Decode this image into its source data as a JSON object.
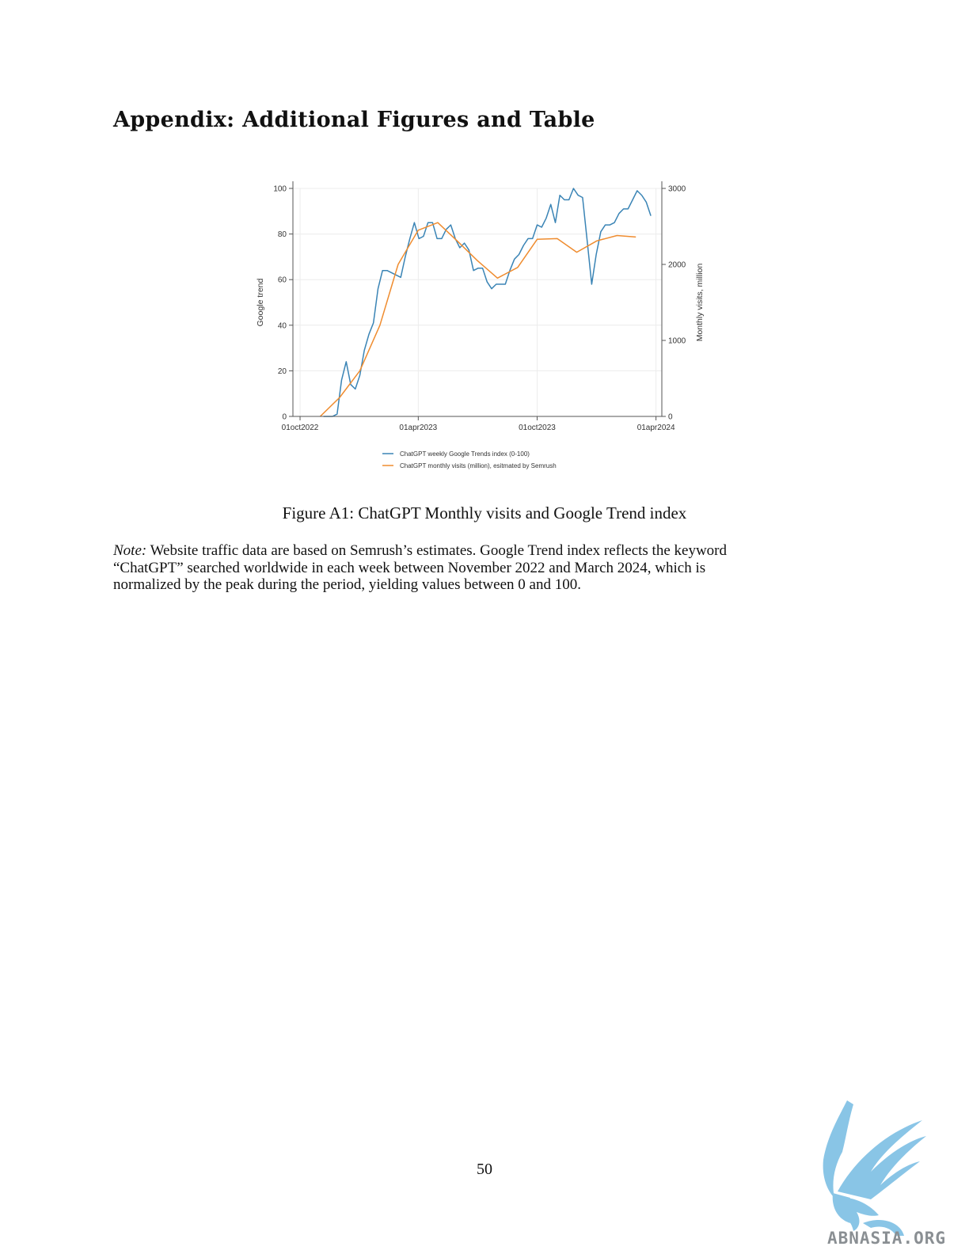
{
  "page": {
    "heading": "Appendix: Additional Figures and Table",
    "caption": "Figure A1: ChatGPT Monthly visits and Google Trend index",
    "note": {
      "label": "Note:",
      "line1": "Website traffic data are based on Semrush’s estimates. Google Trend index reflects the keyword",
      "line2": "“ChatGPT” searched worldwide in each week between November 2022 and March 2024, which is",
      "line3": "normalized by the peak during the period, yielding values between 0 and 100."
    },
    "page_number": "50"
  },
  "watermark": {
    "text": "ABNASIA.ORG"
  },
  "chart_data": {
    "type": "line",
    "x_axis": {
      "ticks": [
        "2022-10-01",
        "2023-04-01",
        "2023-10-01",
        "2024-04-01"
      ],
      "tick_labels": [
        "01oct2022",
        "01apr2023",
        "01oct2023",
        "01apr2024"
      ],
      "range": [
        "2022-09-20",
        "2024-04-10"
      ]
    },
    "y_left": {
      "label": "Google trend",
      "ticks": [
        0,
        20,
        40,
        60,
        80,
        100
      ],
      "range": [
        0,
        100
      ]
    },
    "y_right": {
      "label": "Monthly visits, million",
      "ticks": [
        0,
        1000,
        2000,
        3000
      ],
      "range": [
        0,
        3000
      ]
    },
    "grid": true,
    "legend_position": "bottom",
    "series": [
      {
        "name": "ChatGPT weekly Google Trends index (0-100)",
        "axis": "left",
        "color": "#3a84b5",
        "points": [
          [
            "2022-11-06",
            0
          ],
          [
            "2022-11-13",
            0
          ],
          [
            "2022-11-20",
            0
          ],
          [
            "2022-11-27",
            1
          ],
          [
            "2022-12-04",
            16
          ],
          [
            "2022-12-11",
            24
          ],
          [
            "2022-12-18",
            14
          ],
          [
            "2022-12-25",
            12
          ],
          [
            "2023-01-01",
            18
          ],
          [
            "2023-01-08",
            29
          ],
          [
            "2023-01-15",
            36
          ],
          [
            "2023-01-22",
            41
          ],
          [
            "2023-01-29",
            56
          ],
          [
            "2023-02-05",
            64
          ],
          [
            "2023-02-12",
            64
          ],
          [
            "2023-02-19",
            63
          ],
          [
            "2023-02-26",
            62
          ],
          [
            "2023-03-05",
            61
          ],
          [
            "2023-03-12",
            70
          ],
          [
            "2023-03-19",
            78
          ],
          [
            "2023-03-26",
            85
          ],
          [
            "2023-04-02",
            78
          ],
          [
            "2023-04-09",
            79
          ],
          [
            "2023-04-16",
            85
          ],
          [
            "2023-04-23",
            85
          ],
          [
            "2023-04-30",
            78
          ],
          [
            "2023-05-07",
            78
          ],
          [
            "2023-05-14",
            82
          ],
          [
            "2023-05-21",
            84
          ],
          [
            "2023-05-28",
            78
          ],
          [
            "2023-06-04",
            74
          ],
          [
            "2023-06-11",
            76
          ],
          [
            "2023-06-18",
            73
          ],
          [
            "2023-06-25",
            64
          ],
          [
            "2023-07-02",
            65
          ],
          [
            "2023-07-09",
            65
          ],
          [
            "2023-07-16",
            59
          ],
          [
            "2023-07-23",
            56
          ],
          [
            "2023-07-30",
            58
          ],
          [
            "2023-08-06",
            58
          ],
          [
            "2023-08-13",
            58
          ],
          [
            "2023-08-20",
            64
          ],
          [
            "2023-08-27",
            69
          ],
          [
            "2023-09-03",
            71
          ],
          [
            "2023-09-10",
            75
          ],
          [
            "2023-09-17",
            78
          ],
          [
            "2023-09-24",
            78
          ],
          [
            "2023-10-01",
            84
          ],
          [
            "2023-10-08",
            83
          ],
          [
            "2023-10-15",
            87
          ],
          [
            "2023-10-22",
            93
          ],
          [
            "2023-10-29",
            85
          ],
          [
            "2023-11-05",
            97
          ],
          [
            "2023-11-12",
            95
          ],
          [
            "2023-11-19",
            95
          ],
          [
            "2023-11-26",
            100
          ],
          [
            "2023-12-03",
            97
          ],
          [
            "2023-12-10",
            96
          ],
          [
            "2023-12-17",
            77
          ],
          [
            "2023-12-24",
            58
          ],
          [
            "2023-12-31",
            71
          ],
          [
            "2024-01-07",
            81
          ],
          [
            "2024-01-14",
            84
          ],
          [
            "2024-01-21",
            84
          ],
          [
            "2024-01-28",
            85
          ],
          [
            "2024-02-04",
            89
          ],
          [
            "2024-02-11",
            91
          ],
          [
            "2024-02-18",
            91
          ],
          [
            "2024-02-25",
            95
          ],
          [
            "2024-03-03",
            99
          ],
          [
            "2024-03-10",
            97
          ],
          [
            "2024-03-17",
            94
          ],
          [
            "2024-03-24",
            88
          ]
        ]
      },
      {
        "name": "ChatGPT monthly visits (million), esitmated by Semrush",
        "axis": "right",
        "color": "#ef8c2f",
        "points": [
          [
            "2022-11-01",
            0
          ],
          [
            "2022-12-01",
            250
          ],
          [
            "2023-01-01",
            600
          ],
          [
            "2023-02-01",
            1200
          ],
          [
            "2023-03-01",
            2000
          ],
          [
            "2023-04-01",
            2450
          ],
          [
            "2023-05-01",
            2550
          ],
          [
            "2023-06-01",
            2300
          ],
          [
            "2023-07-01",
            2050
          ],
          [
            "2023-08-01",
            1820
          ],
          [
            "2023-09-01",
            1960
          ],
          [
            "2023-10-01",
            2330
          ],
          [
            "2023-11-01",
            2340
          ],
          [
            "2023-12-01",
            2160
          ],
          [
            "2024-01-01",
            2310
          ],
          [
            "2024-02-01",
            2380
          ],
          [
            "2024-03-01",
            2360
          ]
        ]
      }
    ]
  }
}
